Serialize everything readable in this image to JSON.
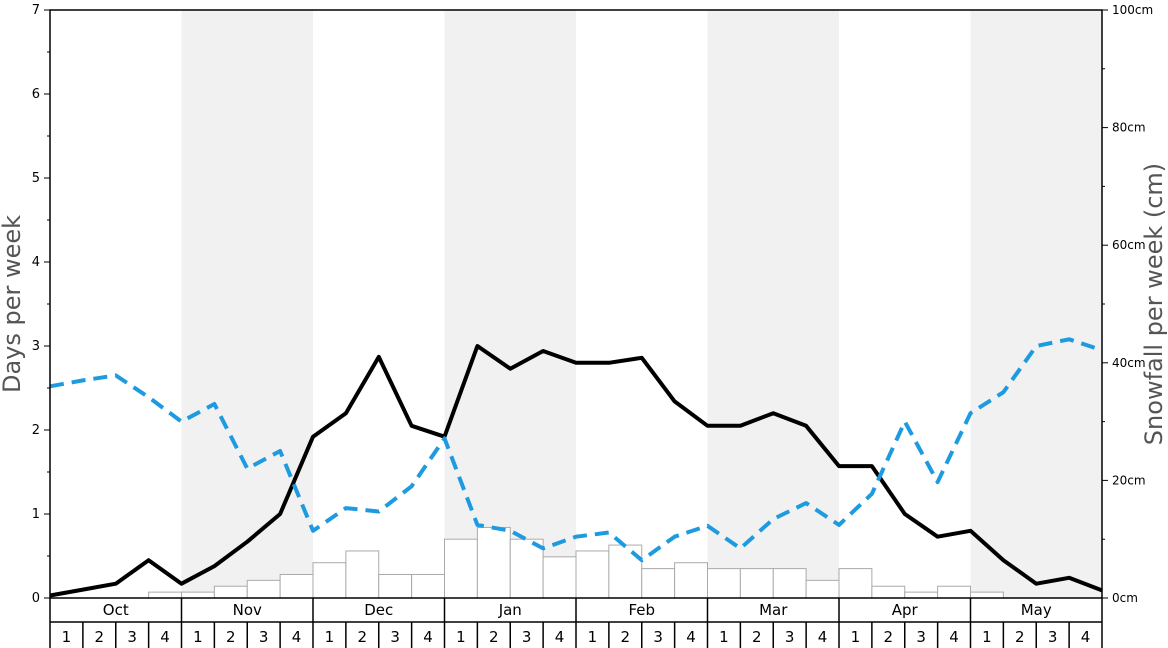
{
  "chart_data": {
    "type": "bar",
    "title": "",
    "ylabel": "Days per week",
    "y2label": "Snowfall per week (cm)",
    "ylim": [
      0,
      7
    ],
    "y2lim": [
      0,
      100
    ],
    "yticks": [
      0,
      1,
      2,
      3,
      4,
      5,
      6,
      7
    ],
    "y2ticks": [
      {
        "value": 0,
        "label": "0cm"
      },
      {
        "value": 20,
        "label": "20cm"
      },
      {
        "value": 40,
        "label": "40cm"
      },
      {
        "value": 60,
        "label": "60cm"
      },
      {
        "value": 80,
        "label": "80cm"
      },
      {
        "value": 100,
        "label": "100cm"
      }
    ],
    "months": [
      "Oct",
      "Nov",
      "Dec",
      "Jan",
      "Feb",
      "Mar",
      "Apr",
      "May"
    ],
    "weeks": [
      "1",
      "2",
      "3",
      "4"
    ],
    "shaded_months": [
      "Nov",
      "Jan",
      "Mar",
      "May"
    ],
    "series": [
      {
        "type": "bar",
        "axis": "right",
        "unit": "cm",
        "values": [
          0,
          0,
          0,
          1,
          1,
          2,
          3,
          4,
          6,
          8,
          4,
          4,
          10,
          12,
          10,
          7,
          8,
          9,
          5,
          6,
          5,
          5,
          5,
          3,
          5,
          2,
          1,
          2,
          1,
          0,
          0,
          0
        ],
        "color": "#ffffff",
        "stroke": "#aaaaaa"
      },
      {
        "type": "line",
        "axis": "left",
        "values": [
          0.03,
          0.1,
          0.17,
          0.45,
          0.17,
          0.38,
          0.67,
          1.0,
          1.92,
          2.2,
          2.87,
          2.05,
          1.92,
          3.0,
          2.73,
          2.94,
          2.8,
          2.8,
          2.86,
          2.34,
          2.05,
          2.05,
          2.2,
          2.05,
          1.57,
          1.57,
          1.0,
          0.73,
          0.8,
          0.45,
          0.17,
          0.24,
          0.09
        ],
        "color": "#000000",
        "dash": false
      },
      {
        "type": "line",
        "axis": "left",
        "values": [
          2.52,
          2.59,
          2.65,
          2.39,
          2.1,
          2.31,
          1.54,
          1.75,
          0.8,
          1.07,
          1.03,
          1.33,
          1.9,
          0.87,
          0.8,
          0.59,
          0.73,
          0.78,
          0.45,
          0.73,
          0.86,
          0.59,
          0.94,
          1.13,
          0.87,
          1.24,
          2.1,
          1.38,
          2.2,
          2.45,
          3.0,
          3.08,
          2.95
        ],
        "color": "#1e9be0",
        "dash": true
      }
    ],
    "grid": false,
    "legend": "none"
  }
}
